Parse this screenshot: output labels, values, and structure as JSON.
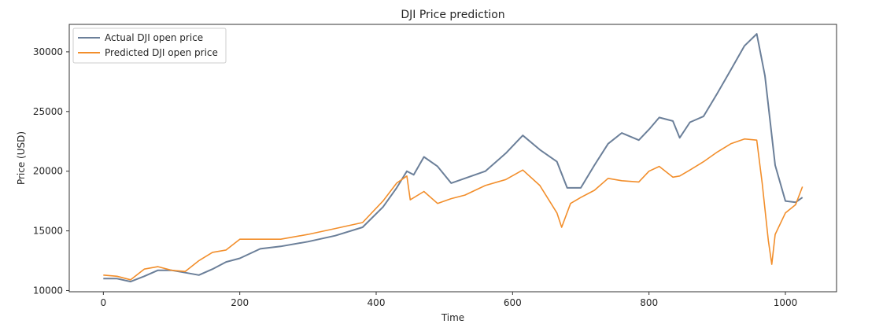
{
  "chart_data": {
    "type": "line",
    "title": "DJI Price prediction",
    "xlabel": "Time",
    "ylabel": "Price (USD)",
    "xlim": [
      -50,
      1075
    ],
    "ylim": [
      9900,
      32300
    ],
    "x_ticks": [
      0,
      200,
      400,
      600,
      800,
      1000
    ],
    "y_ticks": [
      10000,
      15000,
      20000,
      25000,
      30000
    ],
    "grid": false,
    "legend": "top-left",
    "series": [
      {
        "name": "Actual DJI open price",
        "color": "#6b7f99",
        "points": [
          [
            0,
            11000
          ],
          [
            20,
            11000
          ],
          [
            40,
            10750
          ],
          [
            60,
            11200
          ],
          [
            80,
            11700
          ],
          [
            100,
            11700
          ],
          [
            120,
            11500
          ],
          [
            140,
            11300
          ],
          [
            160,
            11800
          ],
          [
            180,
            12400
          ],
          [
            200,
            12700
          ],
          [
            230,
            13500
          ],
          [
            260,
            13700
          ],
          [
            300,
            14100
          ],
          [
            340,
            14600
          ],
          [
            380,
            15300
          ],
          [
            410,
            17000
          ],
          [
            430,
            18600
          ],
          [
            445,
            20000
          ],
          [
            455,
            19700
          ],
          [
            470,
            21200
          ],
          [
            490,
            20400
          ],
          [
            510,
            19000
          ],
          [
            530,
            19400
          ],
          [
            560,
            20000
          ],
          [
            590,
            21500
          ],
          [
            615,
            23000
          ],
          [
            640,
            21800
          ],
          [
            665,
            20800
          ],
          [
            680,
            18600
          ],
          [
            700,
            18600
          ],
          [
            720,
            20500
          ],
          [
            740,
            22300
          ],
          [
            760,
            23200
          ],
          [
            785,
            22600
          ],
          [
            800,
            23500
          ],
          [
            815,
            24500
          ],
          [
            835,
            24200
          ],
          [
            845,
            22800
          ],
          [
            860,
            24100
          ],
          [
            880,
            24600
          ],
          [
            900,
            26500
          ],
          [
            920,
            28500
          ],
          [
            940,
            30500
          ],
          [
            958,
            31500
          ],
          [
            970,
            28000
          ],
          [
            985,
            20500
          ],
          [
            1000,
            17500
          ],
          [
            1015,
            17400
          ],
          [
            1025,
            17800
          ]
        ]
      },
      {
        "name": "Predicted DJI open price",
        "color": "#f28e2b",
        "points": [
          [
            0,
            11300
          ],
          [
            20,
            11200
          ],
          [
            40,
            10900
          ],
          [
            60,
            11800
          ],
          [
            80,
            12000
          ],
          [
            100,
            11700
          ],
          [
            120,
            11600
          ],
          [
            140,
            12500
          ],
          [
            160,
            13200
          ],
          [
            180,
            13400
          ],
          [
            200,
            14300
          ],
          [
            230,
            14300
          ],
          [
            260,
            14300
          ],
          [
            300,
            14700
          ],
          [
            340,
            15200
          ],
          [
            380,
            15700
          ],
          [
            410,
            17500
          ],
          [
            430,
            19000
          ],
          [
            445,
            19600
          ],
          [
            450,
            17600
          ],
          [
            470,
            18300
          ],
          [
            490,
            17300
          ],
          [
            510,
            17700
          ],
          [
            530,
            18000
          ],
          [
            560,
            18800
          ],
          [
            590,
            19300
          ],
          [
            615,
            20100
          ],
          [
            640,
            18800
          ],
          [
            665,
            16500
          ],
          [
            672,
            15300
          ],
          [
            685,
            17300
          ],
          [
            700,
            17800
          ],
          [
            720,
            18400
          ],
          [
            740,
            19400
          ],
          [
            760,
            19200
          ],
          [
            785,
            19100
          ],
          [
            800,
            20000
          ],
          [
            815,
            20400
          ],
          [
            835,
            19500
          ],
          [
            845,
            19600
          ],
          [
            860,
            20100
          ],
          [
            880,
            20800
          ],
          [
            900,
            21600
          ],
          [
            920,
            22300
          ],
          [
            940,
            22700
          ],
          [
            958,
            22600
          ],
          [
            966,
            19000
          ],
          [
            975,
            14200
          ],
          [
            980,
            12200
          ],
          [
            985,
            14700
          ],
          [
            1000,
            16500
          ],
          [
            1015,
            17200
          ],
          [
            1025,
            18700
          ]
        ]
      }
    ]
  }
}
